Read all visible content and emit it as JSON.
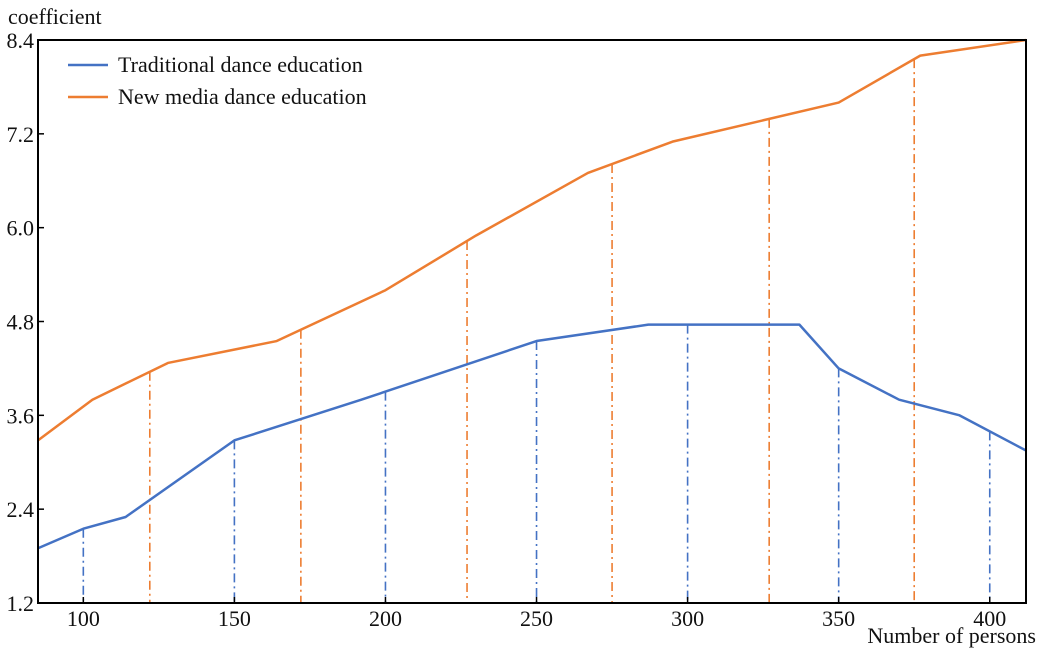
{
  "chart_data": {
    "type": "line",
    "title": "",
    "xlabel": "Number of persons",
    "ylabel": "coefficient",
    "xlim": [
      85,
      412
    ],
    "ylim": [
      1.2,
      8.4
    ],
    "xticks": [
      100,
      150,
      200,
      250,
      300,
      350,
      400
    ],
    "yticks": [
      1.2,
      2.4,
      3.6,
      4.8,
      6.0,
      7.2,
      8.4
    ],
    "ytick_labels": [
      "1.2",
      "2.4",
      "3.6",
      "4.8",
      "6.0",
      "7.2",
      "8.4"
    ],
    "grid": false,
    "legend_position": "top-left",
    "series": [
      {
        "name": "Traditional dance education",
        "color": "#4472c4",
        "x": [
          85,
          100,
          114,
          150,
          192,
          250,
          287,
          337,
          350,
          370,
          390,
          412
        ],
        "y": [
          1.9,
          2.15,
          2.3,
          3.28,
          3.8,
          4.55,
          4.76,
          4.76,
          4.2,
          3.8,
          3.6,
          3.15
        ],
        "drop_lines_x": [
          100,
          150,
          200,
          250,
          300,
          350,
          400
        ]
      },
      {
        "name": "New media dance education",
        "color": "#ed7d31",
        "x": [
          85,
          103,
          128,
          164,
          200,
          230,
          267,
          295,
          350,
          377,
          412
        ],
        "y": [
          3.28,
          3.8,
          4.27,
          4.55,
          5.2,
          5.9,
          6.7,
          7.1,
          7.6,
          8.2,
          8.4
        ],
        "drop_lines_x": [
          122,
          172,
          227,
          275,
          327,
          375
        ]
      }
    ]
  }
}
